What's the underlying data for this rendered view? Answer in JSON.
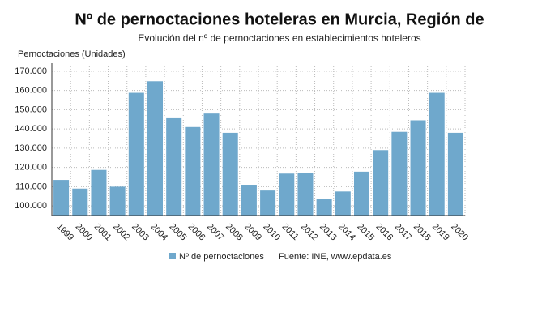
{
  "chart_data": {
    "type": "bar",
    "title": "Nº de pernoctaciones hoteleras en Murcia, Región de",
    "subtitle": "Evolución del nº de pernoctaciones en establecimientos hoteleros",
    "y_axis_label": "Pernoctaciones (Unidades)",
    "source": "Fuente: INE, www.epdata.es",
    "categories": [
      "1999",
      "2000",
      "2001",
      "2002",
      "2003",
      "2004",
      "2005",
      "2006",
      "2007",
      "2008",
      "2009",
      "2010",
      "2011",
      "2012",
      "2013",
      "2014",
      "2015",
      "2016",
      "2017",
      "2018",
      "2019",
      "2020"
    ],
    "series": [
      {
        "name": "Nº de pernoctaciones",
        "color": "#6fa8cc",
        "values": [
          113500,
          109000,
          118700,
          110000,
          158800,
          164800,
          146000,
          141000,
          148000,
          138000,
          111000,
          108000,
          116800,
          117300,
          103500,
          107500,
          117800,
          129000,
          138500,
          144500,
          158800,
          138000
        ]
      }
    ],
    "ylim": [
      95000,
      172500
    ],
    "yticks": [
      {
        "value": 100000,
        "label": "100.000"
      },
      {
        "value": 110000,
        "label": "110.000"
      },
      {
        "value": 120000,
        "label": "120.000"
      },
      {
        "value": 130000,
        "label": "130.000"
      },
      {
        "value": 140000,
        "label": "140.000"
      },
      {
        "value": 150000,
        "label": "150.000"
      },
      {
        "value": 160000,
        "label": "160.000"
      },
      {
        "value": 170000,
        "label": "170.000"
      }
    ],
    "grid": true
  }
}
